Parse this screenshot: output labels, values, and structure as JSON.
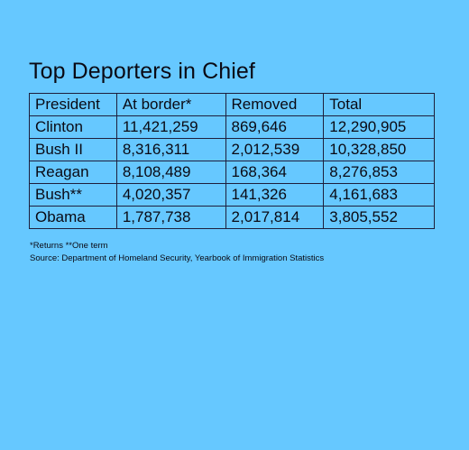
{
  "title": "Top Deporters in Chief",
  "table": {
    "headers": [
      "President",
      "At border*",
      "Removed",
      "Total"
    ],
    "rows": [
      [
        "Clinton",
        "11,421,259",
        "869,646",
        "12,290,905"
      ],
      [
        "Bush II",
        "8,316,311",
        "2,012,539",
        "10,328,850"
      ],
      [
        "Reagan",
        "8,108,489",
        "168,364",
        "8,276,853"
      ],
      [
        "Bush**",
        "4,020,357",
        "141,326",
        "4,161,683"
      ],
      [
        "Obama",
        "1,787,738",
        "2,017,814",
        "3,805,552"
      ]
    ]
  },
  "footnote": "*Returns **One term",
  "source": "Source: Department of Homeland Security, Yearbook of Immigration Statistics",
  "colors": {
    "background": "#66c8ff",
    "text": "#0a0a14",
    "border": "#1e1e3c"
  }
}
